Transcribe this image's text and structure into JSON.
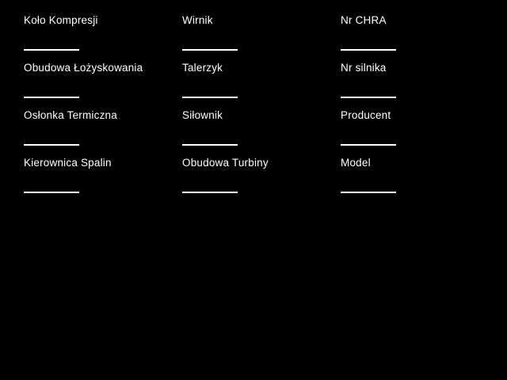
{
  "page": {
    "background_color": "#000000",
    "text_color": "#ffffff",
    "underline_color": "#ffffff"
  },
  "form": {
    "columns": [
      {
        "fields": [
          {
            "label": "Koło Kompresji",
            "value": ""
          },
          {
            "label": "Obudowa Łożyskowania",
            "value": ""
          },
          {
            "label": "Osłonka Termiczna",
            "value": ""
          },
          {
            "label": "Kierownica Spalin",
            "value": ""
          }
        ]
      },
      {
        "fields": [
          {
            "label": "Wirnik",
            "value": ""
          },
          {
            "label": "Talerzyk",
            "value": ""
          },
          {
            "label": "Siłownik",
            "value": ""
          },
          {
            "label": "Obudowa Turbiny",
            "value": ""
          }
        ]
      },
      {
        "fields": [
          {
            "label": "Nr CHRA",
            "value": ""
          },
          {
            "label": "Nr silnika",
            "value": ""
          },
          {
            "label": "Producent",
            "value": ""
          },
          {
            "label": "Model",
            "value": ""
          }
        ]
      }
    ]
  }
}
